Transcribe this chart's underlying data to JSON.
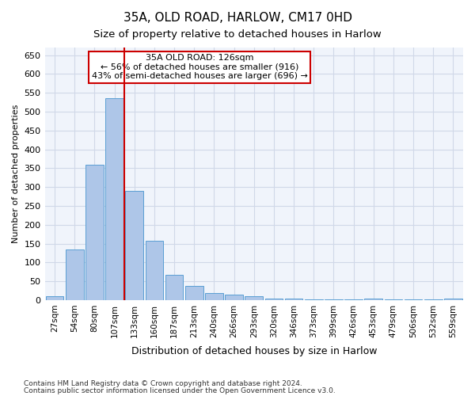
{
  "title1": "35A, OLD ROAD, HARLOW, CM17 0HD",
  "title2": "Size of property relative to detached houses in Harlow",
  "xlabel": "Distribution of detached houses by size in Harlow",
  "ylabel": "Number of detached properties",
  "categories": [
    "27sqm",
    "54sqm",
    "80sqm",
    "107sqm",
    "133sqm",
    "160sqm",
    "187sqm",
    "213sqm",
    "240sqm",
    "266sqm",
    "293sqm",
    "320sqm",
    "346sqm",
    "373sqm",
    "399sqm",
    "426sqm",
    "453sqm",
    "479sqm",
    "506sqm",
    "532sqm",
    "559sqm"
  ],
  "values": [
    10,
    135,
    360,
    535,
    290,
    158,
    68,
    38,
    18,
    15,
    10,
    5,
    3,
    2,
    1,
    1,
    3,
    1,
    1,
    1,
    3
  ],
  "bar_color": "#aec6e8",
  "bar_edge_color": "#5a9fd4",
  "vline_x": 3.5,
  "vline_color": "#cc0000",
  "annotation_text": "35A OLD ROAD: 126sqm\n← 56% of detached houses are smaller (916)\n43% of semi-detached houses are larger (696) →",
  "annotation_box_color": "#ffffff",
  "annotation_box_edge": "#cc0000",
  "ylim": [
    0,
    670
  ],
  "yticks": [
    0,
    50,
    100,
    150,
    200,
    250,
    300,
    350,
    400,
    450,
    500,
    550,
    600,
    650
  ],
  "grid_color": "#d0d8e8",
  "background_color": "#f0f4fb",
  "footer1": "Contains HM Land Registry data © Crown copyright and database right 2024.",
  "footer2": "Contains public sector information licensed under the Open Government Licence v3.0."
}
